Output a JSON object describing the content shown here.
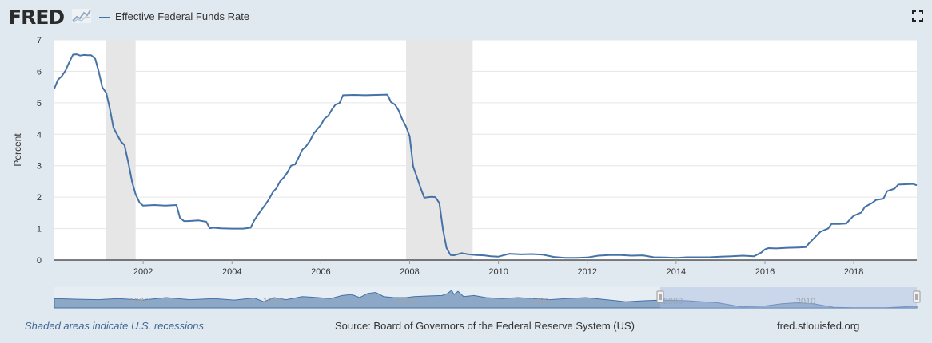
{
  "header": {
    "logo_text": "FRED",
    "logo_icon": "chart-line-icon",
    "legend_label": "Effective Federal Funds Rate",
    "fullscreen_icon": "fullscreen-icon"
  },
  "footer": {
    "recession_note": "Shaded areas indicate U.S. recessions",
    "source": "Source: Board of Governors of the Federal Reserve System (US)",
    "site": "fred.stlouisfed.org"
  },
  "colors": {
    "series": "#4572a7",
    "recession_shade": "#e6e6e6",
    "background": "#e1e9f0",
    "plot_background": "#ffffff"
  },
  "chart_data": {
    "type": "line",
    "title": "",
    "xlabel": "",
    "ylabel": "Percent",
    "xlim": [
      2000.0,
      2019.42
    ],
    "ylim": [
      0,
      7
    ],
    "yticks": [
      0,
      1,
      2,
      3,
      4,
      5,
      6,
      7
    ],
    "xticks": [
      2002,
      2004,
      2006,
      2008,
      2010,
      2012,
      2014,
      2016,
      2018
    ],
    "grid": true,
    "legend_position": "top-left",
    "recessions": [
      [
        2001.17,
        2001.83
      ],
      [
        2007.92,
        2009.42
      ]
    ],
    "series": [
      {
        "name": "Effective Federal Funds Rate",
        "x": [
          2000.0,
          2000.08,
          2000.17,
          2000.25,
          2000.33,
          2000.42,
          2000.5,
          2000.58,
          2000.67,
          2000.75,
          2000.83,
          2000.92,
          2001.0,
          2001.08,
          2001.17,
          2001.25,
          2001.33,
          2001.42,
          2001.5,
          2001.58,
          2001.67,
          2001.75,
          2001.83,
          2001.92,
          2002.0,
          2002.25,
          2002.5,
          2002.75,
          2002.83,
          2002.92,
          2003.0,
          2003.25,
          2003.42,
          2003.5,
          2003.58,
          2003.75,
          2004.0,
          2004.25,
          2004.42,
          2004.5,
          2004.58,
          2004.67,
          2004.75,
          2004.83,
          2004.92,
          2005.0,
          2005.08,
          2005.17,
          2005.25,
          2005.33,
          2005.42,
          2005.5,
          2005.58,
          2005.67,
          2005.75,
          2005.83,
          2005.92,
          2006.0,
          2006.08,
          2006.17,
          2006.25,
          2006.33,
          2006.42,
          2006.5,
          2006.75,
          2007.0,
          2007.25,
          2007.5,
          2007.58,
          2007.67,
          2007.75,
          2007.83,
          2007.92,
          2008.0,
          2008.08,
          2008.17,
          2008.25,
          2008.33,
          2008.42,
          2008.5,
          2008.58,
          2008.67,
          2008.75,
          2008.83,
          2008.92,
          2009.0,
          2009.17,
          2009.33,
          2009.5,
          2009.67,
          2009.83,
          2010.0,
          2010.25,
          2010.5,
          2010.75,
          2011.0,
          2011.25,
          2011.5,
          2011.75,
          2012.0,
          2012.25,
          2012.5,
          2012.75,
          2013.0,
          2013.25,
          2013.5,
          2013.75,
          2014.0,
          2014.25,
          2014.5,
          2014.75,
          2015.0,
          2015.25,
          2015.5,
          2015.75,
          2015.92,
          2016.0,
          2016.08,
          2016.25,
          2016.5,
          2016.75,
          2016.92,
          2017.0,
          2017.17,
          2017.25,
          2017.42,
          2017.5,
          2017.67,
          2017.83,
          2017.92,
          2018.0,
          2018.17,
          2018.25,
          2018.42,
          2018.5,
          2018.67,
          2018.75,
          2018.92,
          2019.0,
          2019.17,
          2019.33,
          2019.42
        ],
        "y": [
          5.45,
          5.73,
          5.85,
          6.02,
          6.27,
          6.53,
          6.54,
          6.5,
          6.52,
          6.51,
          6.51,
          6.4,
          5.98,
          5.49,
          5.31,
          4.8,
          4.21,
          3.97,
          3.77,
          3.65,
          3.07,
          2.49,
          2.09,
          1.82,
          1.73,
          1.75,
          1.73,
          1.75,
          1.34,
          1.24,
          1.24,
          1.26,
          1.22,
          1.01,
          1.03,
          1.01,
          1.0,
          1.0,
          1.03,
          1.26,
          1.43,
          1.61,
          1.76,
          1.93,
          2.16,
          2.28,
          2.5,
          2.63,
          2.79,
          3.0,
          3.04,
          3.26,
          3.5,
          3.62,
          3.78,
          4.0,
          4.16,
          4.29,
          4.49,
          4.59,
          4.79,
          4.94,
          4.99,
          5.24,
          5.25,
          5.24,
          5.25,
          5.26,
          5.02,
          4.94,
          4.76,
          4.49,
          4.24,
          3.94,
          2.98,
          2.61,
          2.28,
          1.98,
          2.0,
          2.01,
          2.0,
          1.81,
          0.97,
          0.39,
          0.16,
          0.15,
          0.22,
          0.18,
          0.16,
          0.15,
          0.12,
          0.11,
          0.2,
          0.18,
          0.19,
          0.17,
          0.1,
          0.07,
          0.07,
          0.08,
          0.14,
          0.16,
          0.16,
          0.14,
          0.15,
          0.09,
          0.08,
          0.07,
          0.09,
          0.09,
          0.09,
          0.11,
          0.12,
          0.14,
          0.12,
          0.24,
          0.34,
          0.38,
          0.37,
          0.39,
          0.4,
          0.41,
          0.54,
          0.79,
          0.9,
          1.0,
          1.15,
          1.15,
          1.16,
          1.3,
          1.41,
          1.51,
          1.69,
          1.82,
          1.91,
          1.95,
          2.19,
          2.27,
          2.4,
          2.41,
          2.42,
          2.38
        ]
      }
    ]
  },
  "navigator": {
    "tick_labels": [
      "1960",
      "1970",
      "1980",
      "1990",
      "2000",
      "2010"
    ]
  }
}
